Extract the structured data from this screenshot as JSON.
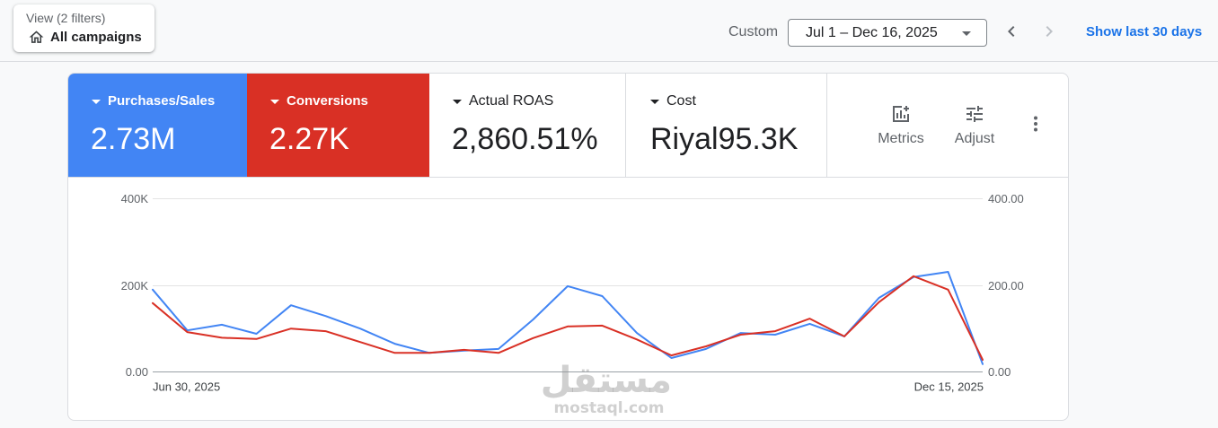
{
  "top_bar": {
    "view_filter": {
      "subtitle": "View (2 filters)",
      "title": "All campaigns",
      "icon": "home-icon"
    },
    "date_range": {
      "label": "Custom",
      "value": "Jul 1 – Dec 16, 2025",
      "icon": "arrow-drop-down-icon"
    },
    "prev_icon": "chevron-left-icon",
    "next_icon": "chevron-right-icon",
    "next_disabled": true,
    "show_last_30_days": "Show last 30 days"
  },
  "metrics": [
    {
      "label": "Purchases/Sales",
      "value": "2.73M",
      "color": "#4285f4",
      "selected": true
    },
    {
      "label": "Conversions",
      "value": "2.27K",
      "color": "#d93025",
      "selected": true
    },
    {
      "label": "Actual ROAS",
      "value": "2,860.51%",
      "selected": false
    },
    {
      "label": "Cost",
      "value": "Riyal95.3K",
      "selected": false
    }
  ],
  "toolbar": {
    "metrics_label": "Metrics",
    "metrics_icon": "add-chart-icon",
    "adjust_label": "Adjust",
    "adjust_icon": "tune-icon",
    "more_icon": "more-vert-icon"
  },
  "colors": {
    "link": "#1a73e8",
    "purchases_sales": "#4285f4",
    "conversions": "#d93025"
  },
  "chart_data": {
    "type": "line",
    "x": [
      "2025-06-30",
      "2025-07-07",
      "2025-07-14",
      "2025-07-21",
      "2025-07-28",
      "2025-08-04",
      "2025-08-11",
      "2025-08-18",
      "2025-08-25",
      "2025-09-01",
      "2025-09-08",
      "2025-09-15",
      "2025-09-22",
      "2025-09-29",
      "2025-10-06",
      "2025-10-13",
      "2025-10-20",
      "2025-10-27",
      "2025-11-03",
      "2025-11-10",
      "2025-11-17",
      "2025-11-24",
      "2025-12-01",
      "2025-12-08",
      "2025-12-15"
    ],
    "x_tick_labels": [
      {
        "x": "2025-06-30",
        "label": "Jun 30, 2025"
      },
      {
        "x": "2025-12-15",
        "label": "Dec 15, 2025"
      }
    ],
    "y_left": {
      "range": [
        0,
        400000
      ],
      "ticks": [
        {
          "value": 400000,
          "label": "400K"
        },
        {
          "value": 200000,
          "label": "200K"
        },
        {
          "value": 0,
          "label": "0.00"
        }
      ]
    },
    "y_right": {
      "range": [
        0,
        400
      ],
      "ticks": [
        {
          "value": 400,
          "label": "400.00"
        },
        {
          "value": 200,
          "label": "200.00"
        },
        {
          "value": 0,
          "label": "0.00"
        }
      ]
    },
    "grid": true,
    "series": [
      {
        "axis": "left",
        "color": "#4285f4",
        "values": [
          189000,
          95000,
          108000,
          87000,
          153000,
          128000,
          99000,
          64000,
          43000,
          48000,
          52000,
          120000,
          197000,
          174000,
          89000,
          31000,
          52000,
          89000,
          85000,
          110000,
          81000,
          170000,
          218000,
          230000,
          17000
        ]
      },
      {
        "axis": "right",
        "color": "#d93025",
        "values": [
          158,
          91,
          78,
          75,
          99,
          93,
          68,
          43,
          43,
          50,
          43,
          77,
          104,
          106,
          74,
          37,
          58,
          85,
          93,
          122,
          81,
          160,
          220,
          189,
          27
        ]
      }
    ]
  },
  "watermark": {
    "arabic": "مستقل",
    "latin": "mostaql.com"
  }
}
